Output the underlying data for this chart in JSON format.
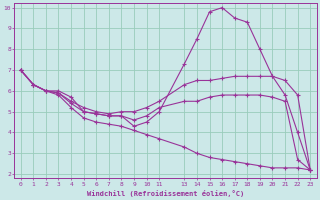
{
  "background_color": "#cce8e8",
  "grid_color": "#99ccbb",
  "line_color": "#993399",
  "xlabel": "Windchill (Refroidissement éolien,°C)",
  "xlim": [
    -0.5,
    23.5
  ],
  "ylim": [
    1.8,
    10.2
  ],
  "yticks": [
    2,
    3,
    4,
    5,
    6,
    7,
    8,
    9,
    10
  ],
  "xticks": [
    0,
    1,
    2,
    3,
    4,
    5,
    6,
    7,
    8,
    9,
    10,
    11,
    13,
    14,
    15,
    16,
    17,
    18,
    19,
    20,
    21,
    22,
    23
  ],
  "xtick_labels": [
    "0",
    "1",
    "2",
    "3",
    "4",
    "5",
    "6",
    "7",
    "8",
    "9",
    "10",
    "11",
    "13",
    "14",
    "15",
    "16",
    "17",
    "18",
    "19",
    "20",
    "21",
    "22",
    "23"
  ],
  "lines": [
    {
      "x": [
        0,
        1,
        2,
        3,
        4,
        5,
        6,
        7,
        8,
        9,
        10,
        11,
        13,
        14,
        15,
        16,
        17,
        18,
        19,
        20,
        21,
        22,
        23
      ],
      "y": [
        7.0,
        6.3,
        6.0,
        6.0,
        5.7,
        5.0,
        4.9,
        4.8,
        4.8,
        4.3,
        4.5,
        5.0,
        7.3,
        8.5,
        9.8,
        10.0,
        9.5,
        9.3,
        8.0,
        6.7,
        5.8,
        4.0,
        2.2
      ]
    },
    {
      "x": [
        0,
        1,
        2,
        3,
        4,
        5,
        6,
        7,
        8,
        9,
        10,
        11,
        13,
        14,
        15,
        16,
        17,
        18,
        19,
        20,
        21,
        22,
        23
      ],
      "y": [
        7.0,
        6.3,
        6.0,
        5.9,
        5.5,
        5.2,
        5.0,
        4.9,
        5.0,
        5.0,
        5.2,
        5.5,
        6.3,
        6.5,
        6.5,
        6.6,
        6.7,
        6.7,
        6.7,
        6.7,
        6.5,
        5.8,
        2.2
      ]
    },
    {
      "x": [
        0,
        1,
        2,
        3,
        4,
        5,
        6,
        7,
        8,
        9,
        10,
        11,
        13,
        14,
        15,
        16,
        17,
        18,
        19,
        20,
        21,
        22,
        23
      ],
      "y": [
        7.0,
        6.3,
        6.0,
        5.9,
        5.4,
        5.0,
        4.9,
        4.8,
        4.8,
        4.6,
        4.8,
        5.2,
        5.5,
        5.5,
        5.7,
        5.8,
        5.8,
        5.8,
        5.8,
        5.7,
        5.5,
        2.7,
        2.2
      ]
    },
    {
      "x": [
        0,
        1,
        2,
        3,
        4,
        5,
        6,
        7,
        8,
        9,
        10,
        11,
        13,
        14,
        15,
        16,
        17,
        18,
        19,
        20,
        21,
        22,
        23
      ],
      "y": [
        7.0,
        6.3,
        6.0,
        5.8,
        5.2,
        4.7,
        4.5,
        4.4,
        4.3,
        4.1,
        3.9,
        3.7,
        3.3,
        3.0,
        2.8,
        2.7,
        2.6,
        2.5,
        2.4,
        2.3,
        2.3,
        2.3,
        2.2
      ]
    }
  ]
}
